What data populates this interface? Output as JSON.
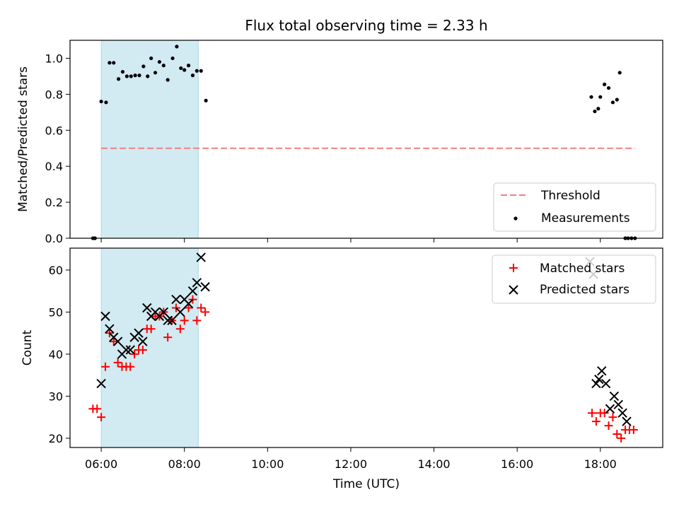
{
  "chart_data": [
    {
      "type": "scatter",
      "title": "Flux total observing time = 2.33 h",
      "xlabel": "",
      "ylabel": "Matched/Predicted stars",
      "ylim": [
        0,
        1.1
      ],
      "xlim": [
        "05:15",
        "19:30"
      ],
      "yticks": [
        "0.0",
        "0.2",
        "0.4",
        "0.6",
        "0.8",
        "1.0"
      ],
      "shaded_span": [
        "06:00",
        "08:20"
      ],
      "legend": {
        "placement": "lower-right",
        "entries": [
          "Threshold",
          "Measurements"
        ]
      },
      "series": [
        {
          "name": "Threshold",
          "kind": "dashed-line",
          "color": "#f08080",
          "x": [
            "06:00",
            "18:50"
          ],
          "values": [
            0.5,
            0.5
          ]
        },
        {
          "name": "Measurements",
          "kind": "dot",
          "color": "#000000",
          "x": [
            "05:48",
            "05:51",
            "06:00",
            "06:07",
            "06:12",
            "06:18",
            "06:25",
            "06:31",
            "06:37",
            "06:43",
            "06:49",
            "06:55",
            "07:01",
            "07:07",
            "07:12",
            "07:18",
            "07:24",
            "07:30",
            "07:36",
            "07:43",
            "07:49",
            "07:55",
            "08:00",
            "08:06",
            "08:12",
            "08:18",
            "08:24",
            "08:31",
            "17:47",
            "17:52",
            "17:57",
            "18:00",
            "18:06",
            "18:12",
            "18:18",
            "18:24",
            "18:28",
            "18:36",
            "18:40",
            "18:45",
            "18:50"
          ],
          "values": [
            0.0,
            0.0,
            0.76,
            0.755,
            0.975,
            0.975,
            0.885,
            0.925,
            0.9,
            0.9,
            0.905,
            0.905,
            0.955,
            0.9,
            1.0,
            0.92,
            0.98,
            0.96,
            0.88,
            1.0,
            1.065,
            0.945,
            0.935,
            0.96,
            0.905,
            0.93,
            0.93,
            0.765,
            0.785,
            0.705,
            0.72,
            0.785,
            0.855,
            0.835,
            0.755,
            0.77,
            0.92,
            0.0,
            0.0,
            0.0,
            0.0
          ]
        }
      ]
    },
    {
      "type": "scatter",
      "title": "",
      "xlabel": "Time (UTC)",
      "ylabel": "Count",
      "ylim": [
        17.8,
        65.2
      ],
      "xlim": [
        "05:15",
        "19:30"
      ],
      "xticks": [
        "06:00",
        "08:00",
        "10:00",
        "12:00",
        "14:00",
        "16:00",
        "18:00"
      ],
      "yticks": [
        "20",
        "30",
        "40",
        "50",
        "60"
      ],
      "shaded_span": [
        "06:00",
        "08:20"
      ],
      "legend": {
        "placement": "top-right",
        "entries": [
          "Matched stars",
          "Predicted stars"
        ]
      },
      "series": [
        {
          "name": "Matched stars",
          "kind": "plus",
          "color": "#ff0000",
          "x": [
            "05:48",
            "05:54",
            "06:00",
            "06:06",
            "06:12",
            "06:18",
            "06:24",
            "06:30",
            "06:36",
            "06:42",
            "06:48",
            "06:54",
            "07:00",
            "07:06",
            "07:12",
            "07:18",
            "07:24",
            "07:30",
            "07:36",
            "07:42",
            "07:48",
            "07:54",
            "08:00",
            "08:06",
            "08:12",
            "08:18",
            "08:24",
            "08:30",
            "17:48",
            "17:54",
            "18:00",
            "18:06",
            "18:12",
            "18:18",
            "18:24",
            "18:30",
            "18:36",
            "18:42",
            "18:48"
          ],
          "values": [
            27,
            27,
            25,
            37,
            45,
            43,
            38,
            37,
            37,
            37,
            40,
            41,
            41,
            46,
            46,
            49,
            49,
            50,
            44,
            48,
            51,
            46,
            48,
            51,
            53,
            48,
            51,
            50,
            26,
            24,
            26,
            26,
            23,
            25,
            21,
            20,
            22,
            22,
            22
          ]
        },
        {
          "name": "Predicted stars",
          "kind": "x",
          "color": "#000000",
          "x": [
            "06:00",
            "06:06",
            "06:12",
            "06:18",
            "06:24",
            "06:30",
            "06:36",
            "06:42",
            "06:48",
            "06:54",
            "07:00",
            "07:06",
            "07:12",
            "07:18",
            "07:24",
            "07:30",
            "07:36",
            "07:42",
            "07:48",
            "07:54",
            "08:00",
            "08:06",
            "08:12",
            "08:18",
            "08:24",
            "08:30",
            "17:45",
            "17:50",
            "17:54",
            "17:58",
            "18:02",
            "18:08",
            "18:14",
            "18:20",
            "18:26",
            "18:32",
            "18:38"
          ],
          "values": [
            33,
            49,
            46,
            44,
            43,
            40,
            41,
            41,
            44,
            45,
            43,
            51,
            49,
            50,
            49,
            50,
            48,
            48,
            53,
            50,
            53,
            52,
            55,
            57,
            63,
            56,
            62,
            59,
            33,
            34,
            36,
            33,
            27,
            30,
            28,
            26,
            24
          ]
        }
      ]
    }
  ]
}
